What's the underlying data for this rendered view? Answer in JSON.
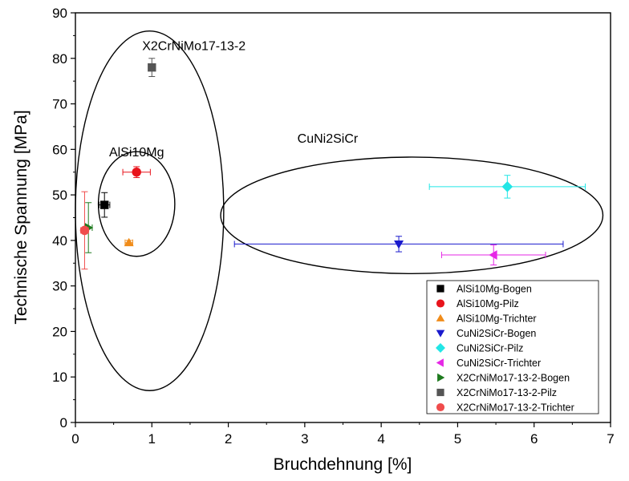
{
  "chart_data": {
    "type": "scatter",
    "xlabel": "Bruchdehnung [%]",
    "ylabel": "Technische Spannung [MPa]",
    "xlim": [
      0,
      7
    ],
    "ylim": [
      0,
      90
    ],
    "xticks": [
      0,
      1,
      2,
      3,
      4,
      5,
      6,
      7
    ],
    "yticks": [
      0,
      10,
      20,
      30,
      40,
      50,
      60,
      70,
      80,
      90
    ],
    "legend_position": "bottom-right",
    "series": [
      {
        "name": "AlSi10Mg-Bogen",
        "marker": "square",
        "color": "#000000",
        "x": 0.38,
        "y": 47.8,
        "xerr": 0.07,
        "yerr": 2.7
      },
      {
        "name": "AlSi10Mg-Pilz",
        "marker": "circle",
        "color": "#e8141c",
        "x": 0.8,
        "y": 55.0,
        "xerr": 0.18,
        "yerr": 1.2
      },
      {
        "name": "AlSi10Mg-Trichter",
        "marker": "triangle-up",
        "color": "#f08c1a",
        "x": 0.7,
        "y": 39.5,
        "xerr": 0.05,
        "yerr": 0.5
      },
      {
        "name": "CuNi2SiCr-Bogen",
        "marker": "triangle-down",
        "color": "#1a1acd",
        "x": 4.23,
        "y": 39.2,
        "xerr": 2.15,
        "yerr": 1.7
      },
      {
        "name": "CuNi2SiCr-Pilz",
        "marker": "diamond",
        "color": "#22e6e6",
        "x": 5.65,
        "y": 51.8,
        "xerr": 1.02,
        "yerr": 2.5
      },
      {
        "name": "CuNi2SiCr-Trichter",
        "marker": "triangle-left",
        "color": "#e627e6",
        "x": 5.47,
        "y": 36.8,
        "xerr": 0.68,
        "yerr": 2.2
      },
      {
        "name": "X2CrNiMo17-13-2-Bogen",
        "marker": "triangle-right",
        "color": "#1e7a1e",
        "x": 0.17,
        "y": 42.8,
        "xerr": 0.05,
        "yerr": 5.5
      },
      {
        "name": "X2CrNiMo17-13-2-Pilz",
        "marker": "square",
        "color": "#555555",
        "x": 1.0,
        "y": 78.0,
        "xerr": 0.02,
        "yerr": 2.0
      },
      {
        "name": "X2CrNiMo17-13-2-Trichter",
        "marker": "circle",
        "color": "#f04c4c",
        "x": 0.12,
        "y": 42.2,
        "xerr": 0.05,
        "yerr": 8.5
      }
    ],
    "groups": [
      {
        "label": "X2CrNiMo17-13-2",
        "cx": 0.97,
        "cy": 46.5,
        "rx": 0.97,
        "ry": 39.5,
        "label_x": 1.55,
        "label_y": 81.8
      },
      {
        "label": "AlSi10Mg",
        "cx": 0.8,
        "cy": 48.0,
        "rx": 0.5,
        "ry": 11.5,
        "label_x": 0.8,
        "label_y": 58.5
      },
      {
        "label": "CuNi2SiCr",
        "cx": 4.4,
        "cy": 45.5,
        "rx": 2.5,
        "ry": 12.8,
        "label_x": 3.3,
        "label_y": 61.5
      }
    ]
  }
}
